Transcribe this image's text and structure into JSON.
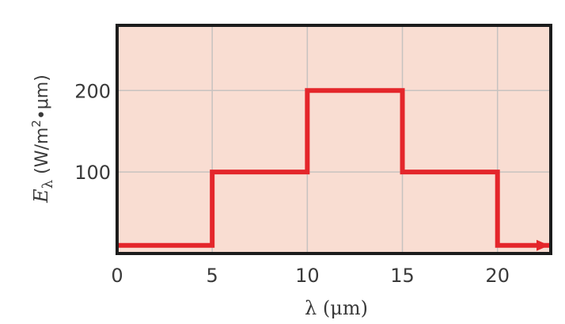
{
  "chart_data": {
    "type": "line",
    "step": true,
    "xlim": [
      0,
      22.8
    ],
    "ylim": [
      0,
      280
    ],
    "x_ticks": [
      0,
      5,
      10,
      15,
      20
    ],
    "x_tick_labels": [
      "0",
      "5",
      "10",
      "15",
      "20"
    ],
    "y_ticks": [
      100,
      200
    ],
    "y_tick_labels": [
      "100",
      "200"
    ],
    "grid": true,
    "xlabel": "λ (μm)",
    "ylabel": "Eλ (W/m2•μm)",
    "series": [
      {
        "points": [
          {
            "x": 0,
            "y": 10
          },
          {
            "x": 5,
            "y": 10
          },
          {
            "x": 5,
            "y": 100
          },
          {
            "x": 10,
            "y": 100
          },
          {
            "x": 10,
            "y": 200
          },
          {
            "x": 15,
            "y": 200
          },
          {
            "x": 15,
            "y": 100
          },
          {
            "x": 20,
            "y": 100
          },
          {
            "x": 20,
            "y": 10
          },
          {
            "x": 22.8,
            "y": 10
          }
        ],
        "arrow_at_end": true
      }
    ],
    "colors": {
      "plot_background": "#f9ddd2",
      "grid": "#c7c2c0",
      "frame": "#1c1c1c",
      "line": "#e4262b",
      "text": "#3a3a3a"
    }
  }
}
